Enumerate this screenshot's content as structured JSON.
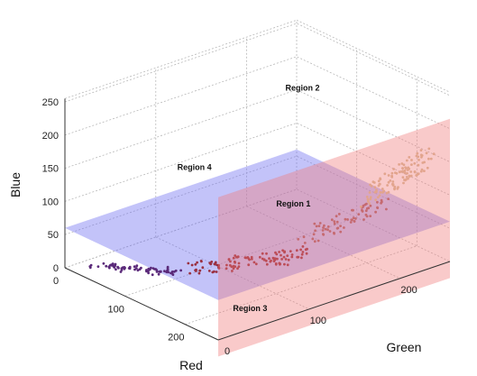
{
  "chart_data": {
    "type": "scatter",
    "projection": "3d",
    "xlabel": "Red",
    "ylabel": "Green",
    "zlabel": "Blue",
    "xlim": [
      0,
      255
    ],
    "ylim": [
      0,
      255
    ],
    "zlim": [
      0,
      255
    ],
    "x_ticks": [
      "0",
      "100",
      "200"
    ],
    "y_ticks": [
      "0",
      "100",
      "200"
    ],
    "z_ticks": [
      "0",
      "50",
      "100",
      "150",
      "200",
      "250"
    ],
    "grid": true,
    "planes": [
      {
        "orientation": "horizontal",
        "axis": "Blue",
        "value": 60,
        "color": "#6f6ff0"
      },
      {
        "orientation": "vertical",
        "axis": "Red",
        "value": 255,
        "color": "#f07a7a"
      }
    ],
    "region_labels": [
      {
        "text": "Region 1",
        "red": 40,
        "green": 225,
        "blue": 5
      },
      {
        "text": "Region 2",
        "red": 40,
        "green": 235,
        "blue": 175
      },
      {
        "text": "Region 3",
        "red": 225,
        "green": 55,
        "blue": 5
      },
      {
        "text": "Region 4",
        "red": 155,
        "green": 40,
        "blue": 195
      }
    ],
    "point_clusters": [
      {
        "red_range": [
          20,
          110
        ],
        "green_range": [
          10,
          60
        ],
        "blue_range": [
          0,
          20
        ],
        "color": "#5b2a7a",
        "count": 70
      },
      {
        "red_range": [
          110,
          200
        ],
        "green_range": [
          60,
          140
        ],
        "blue_range": [
          5,
          55
        ],
        "color": "#9a3040",
        "count": 110
      },
      {
        "red_range": [
          190,
          240
        ],
        "green_range": [
          130,
          200
        ],
        "blue_range": [
          50,
          120
        ],
        "color": "#a9606a",
        "count": 70
      },
      {
        "red_range": [
          220,
          255
        ],
        "green_range": [
          180,
          240
        ],
        "blue_range": [
          100,
          185
        ],
        "color": "#d9c09a",
        "count": 110
      }
    ]
  }
}
